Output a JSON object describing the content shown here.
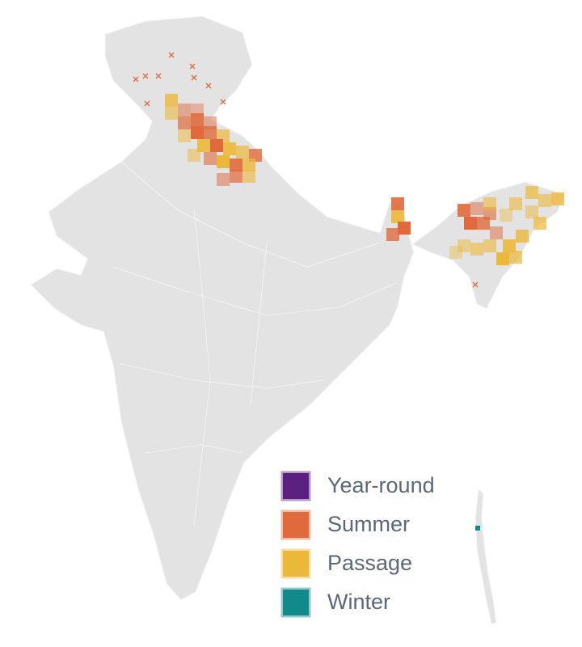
{
  "legend": {
    "items": [
      {
        "label": "Year-round",
        "color": "#5b1f7f"
      },
      {
        "label": "Summer",
        "color": "#e06a3c"
      },
      {
        "label": "Passage",
        "color": "#ebb83a"
      },
      {
        "label": "Winter",
        "color": "#128a8c"
      }
    ]
  }
}
